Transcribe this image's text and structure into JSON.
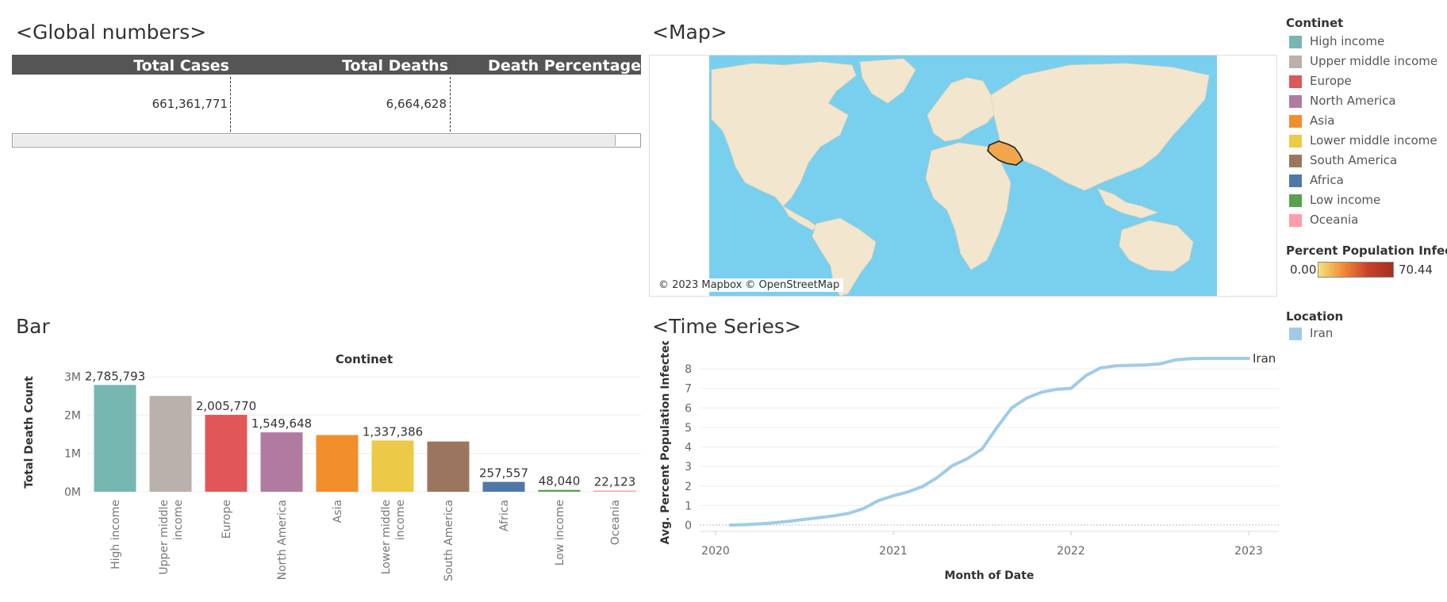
{
  "global": {
    "title": "<Global numbers>",
    "headers": [
      "Total Cases",
      "Total Deaths",
      "Death Percentage"
    ],
    "values": [
      "661,361,771",
      "6,664,628"
    ]
  },
  "map": {
    "title": "<Map>",
    "credit": "© 2023 Mapbox © OpenStreetMap",
    "ocean_color": "#79cfee",
    "land_color": "#f3e6cf",
    "highlight_color": "#f2a64b"
  },
  "legend_continent": {
    "title": "Continet",
    "items": [
      {
        "label": "High income",
        "color": "#76b7b2"
      },
      {
        "label": "Upper middle income",
        "color": "#bab0ac"
      },
      {
        "label": "Europe",
        "color": "#e15759"
      },
      {
        "label": "North America",
        "color": "#b07aa1"
      },
      {
        "label": "Asia",
        "color": "#f28e2b"
      },
      {
        "label": "Lower middle income",
        "color": "#edc948"
      },
      {
        "label": "South America",
        "color": "#9c755f"
      },
      {
        "label": "Africa",
        "color": "#4e79a7"
      },
      {
        "label": "Low income",
        "color": "#59a14f"
      },
      {
        "label": "Oceania",
        "color": "#ff9da7"
      }
    ]
  },
  "legend_percent": {
    "title": "Percent Population Infect..",
    "min": "0.00",
    "max": "70.44"
  },
  "legend_location": {
    "title": "Location",
    "items": [
      {
        "label": "Iran",
        "color": "#a0cbe8"
      }
    ]
  },
  "bar_section": {
    "title": "Bar"
  },
  "time_section": {
    "title": "<Time Series>"
  },
  "chart_data": [
    {
      "type": "bar",
      "title": "Continet",
      "ylabel": "Total Death Count",
      "ylim": [
        0,
        3000000
      ],
      "yticks": [
        {
          "v": 0,
          "label": "0M"
        },
        {
          "v": 1000000,
          "label": "1M"
        },
        {
          "v": 2000000,
          "label": "2M"
        },
        {
          "v": 3000000,
          "label": "3M"
        }
      ],
      "categories": [
        "High income",
        "Upper middle income",
        "Europe",
        "North America",
        "Asia",
        "Lower middle income",
        "South America",
        "Africa",
        "Low income",
        "Oceania"
      ],
      "category_lines": [
        [
          "High income"
        ],
        [
          "Upper middle",
          "income"
        ],
        [
          "Europe"
        ],
        [
          "North America"
        ],
        [
          "Asia"
        ],
        [
          "Lower middle",
          "income"
        ],
        [
          "South America"
        ],
        [
          "Africa"
        ],
        [
          "Low income"
        ],
        [
          "Oceania"
        ]
      ],
      "values": [
        2785793,
        2500000,
        2005770,
        1549648,
        1480000,
        1337386,
        1310000,
        257557,
        48040,
        22123
      ],
      "data_labels": [
        "2,785,793",
        "",
        "2,005,770",
        "1,549,648",
        "",
        "1,337,386",
        "",
        "257,557",
        "48,040",
        "22,123"
      ],
      "colors": [
        "#76b7b2",
        "#bab0ac",
        "#e15759",
        "#b07aa1",
        "#f28e2b",
        "#edc948",
        "#9c755f",
        "#4e79a7",
        "#59a14f",
        "#ff9da7"
      ]
    },
    {
      "type": "line",
      "xlabel": "Month of Date",
      "ylabel": "Avg. Percent Population Infected",
      "xlim": [
        "2020-01",
        "2023-02"
      ],
      "ylim": [
        0,
        8.5
      ],
      "xticks": [
        "2020",
        "2021",
        "2022",
        "2023"
      ],
      "yticks": [
        0,
        1,
        2,
        3,
        4,
        5,
        6,
        7,
        8
      ],
      "series": [
        {
          "name": "Iran",
          "color": "#a0cbe8",
          "x": [
            "2020-02",
            "2020-03",
            "2020-04",
            "2020-05",
            "2020-06",
            "2020-07",
            "2020-08",
            "2020-09",
            "2020-10",
            "2020-11",
            "2020-12",
            "2021-01",
            "2021-02",
            "2021-03",
            "2021-04",
            "2021-05",
            "2021-06",
            "2021-07",
            "2021-08",
            "2021-09",
            "2021-10",
            "2021-11",
            "2021-12",
            "2022-01",
            "2022-02",
            "2022-03",
            "2022-04",
            "2022-05",
            "2022-06",
            "2022-07",
            "2022-08",
            "2022-09",
            "2022-10",
            "2022-11",
            "2022-12",
            "2023-01"
          ],
          "y": [
            0.0,
            0.02,
            0.06,
            0.12,
            0.2,
            0.29,
            0.38,
            0.47,
            0.6,
            0.85,
            1.25,
            1.5,
            1.7,
            1.98,
            2.45,
            3.05,
            3.4,
            3.9,
            5.0,
            6.0,
            6.5,
            6.8,
            6.95,
            7.0,
            7.65,
            8.05,
            8.15,
            8.18,
            8.2,
            8.25,
            8.45,
            8.52,
            8.53,
            8.53,
            8.53,
            8.53
          ]
        }
      ]
    }
  ]
}
